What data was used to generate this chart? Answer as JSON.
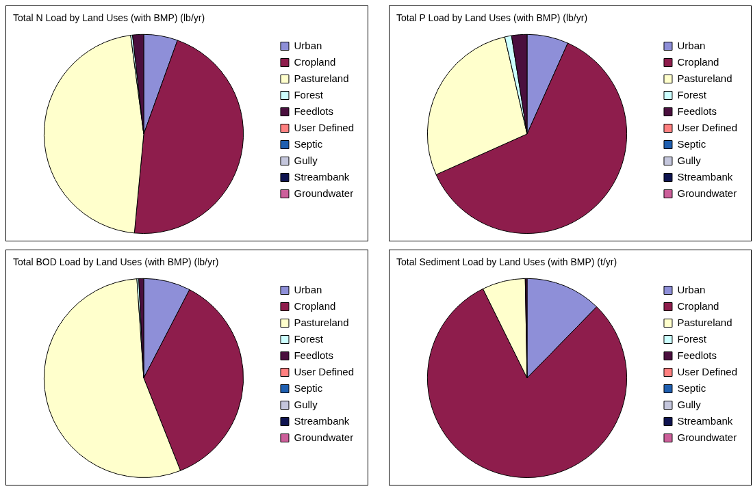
{
  "chart_data": [
    {
      "type": "pie",
      "title": "Total N Load by Land Uses (with BMP) (lb/yr)",
      "categories": [
        "Urban",
        "Cropland",
        "Pastureland",
        "Forest",
        "Feedlots",
        "User Defined",
        "Septic",
        "Gully",
        "Streambank",
        "Groundwater"
      ],
      "values": [
        5.5,
        46,
        46.4,
        0.3,
        1.8,
        0,
        0,
        0,
        0,
        0
      ],
      "colors": [
        "#8e8fd8",
        "#8e1d4c",
        "#ffffcc",
        "#ccffff",
        "#4a0f3e",
        "#ff8080",
        "#1f5fb0",
        "#c4c6dc",
        "#0f1450",
        "#cc5f9a"
      ],
      "legend": "right"
    },
    {
      "type": "pie",
      "title": "Total P Load by Land Uses (with BMP) (lb/yr)",
      "categories": [
        "Urban",
        "Cropland",
        "Pastureland",
        "Forest",
        "Feedlots",
        "User Defined",
        "Septic",
        "Gully",
        "Streambank",
        "Groundwater"
      ],
      "values": [
        6.7,
        61.6,
        28.1,
        1.1,
        2.5,
        0,
        0,
        0,
        0,
        0
      ],
      "colors": [
        "#8e8fd8",
        "#8e1d4c",
        "#ffffcc",
        "#ccffff",
        "#4a0f3e",
        "#ff8080",
        "#1f5fb0",
        "#c4c6dc",
        "#0f1450",
        "#cc5f9a"
      ],
      "legend": "right"
    },
    {
      "type": "pie",
      "title": "Total BOD Load by Land Uses (with BMP) (lb/yr)",
      "categories": [
        "Urban",
        "Cropland",
        "Pastureland",
        "Forest",
        "Feedlots",
        "User Defined",
        "Septic",
        "Gully",
        "Streambank",
        "Groundwater"
      ],
      "values": [
        7.6,
        36.4,
        54.9,
        0.3,
        0.8,
        0,
        0,
        0,
        0,
        0
      ],
      "colors": [
        "#8e8fd8",
        "#8e1d4c",
        "#ffffcc",
        "#ccffff",
        "#4a0f3e",
        "#ff8080",
        "#1f5fb0",
        "#c4c6dc",
        "#0f1450",
        "#cc5f9a"
      ],
      "legend": "right"
    },
    {
      "type": "pie",
      "title": "Total Sediment Load by Land Uses (with BMP) (t/yr)",
      "categories": [
        "Urban",
        "Cropland",
        "Pastureland",
        "Forest",
        "Feedlots",
        "User Defined",
        "Septic",
        "Gully",
        "Streambank",
        "Groundwater"
      ],
      "values": [
        12.3,
        80.4,
        7.0,
        0,
        0.3,
        0,
        0,
        0,
        0,
        0
      ],
      "colors": [
        "#8e8fd8",
        "#8e1d4c",
        "#ffffcc",
        "#ccffff",
        "#4a0f3e",
        "#ff8080",
        "#1f5fb0",
        "#c4c6dc",
        "#0f1450",
        "#cc5f9a"
      ],
      "legend": "right"
    }
  ]
}
